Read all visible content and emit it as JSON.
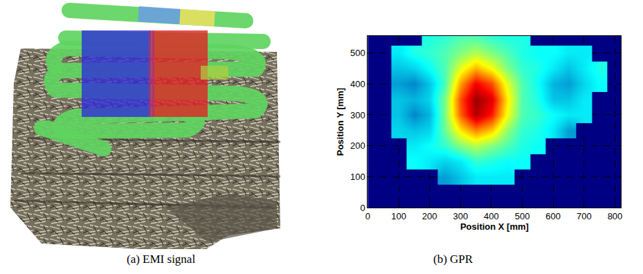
{
  "chart_data": [
    {
      "type": "image",
      "caption": "(a) EMI signal"
    },
    {
      "type": "heatmap",
      "caption": "(b) GPR",
      "x_label": "Position X [mm]",
      "y_label": "Position Y [mm]",
      "x": [
        0,
        50,
        100,
        150,
        200,
        250,
        300,
        350,
        400,
        450,
        500,
        550,
        600,
        650,
        700,
        750,
        800
      ],
      "y": [
        100,
        150,
        200,
        250,
        300,
        350,
        400,
        450,
        500,
        550
      ],
      "z": [
        [
          null,
          null,
          null,
          null,
          null,
          0.25,
          0.3,
          0.35,
          0.35,
          0.35,
          null,
          null,
          null,
          null,
          null,
          null,
          null
        ],
        [
          null,
          null,
          null,
          0.38,
          0.35,
          0.32,
          0.35,
          0.42,
          0.4,
          0.38,
          0.38,
          null,
          null,
          null,
          null,
          null,
          null
        ],
        [
          null,
          null,
          null,
          0.35,
          0.38,
          0.42,
          0.5,
          0.55,
          0.5,
          0.45,
          0.4,
          0.38,
          null,
          null,
          null,
          null,
          null
        ],
        [
          null,
          null,
          0.32,
          0.3,
          0.32,
          0.48,
          0.65,
          0.75,
          0.68,
          0.52,
          0.42,
          0.4,
          0.35,
          0.25,
          null,
          null,
          null
        ],
        [
          null,
          null,
          0.3,
          0.22,
          0.28,
          0.5,
          0.78,
          0.95,
          0.85,
          0.62,
          0.45,
          0.42,
          0.38,
          0.35,
          0.35,
          null,
          null
        ],
        [
          null,
          null,
          0.3,
          0.28,
          0.32,
          0.5,
          0.8,
          0.97,
          0.9,
          0.65,
          0.45,
          0.4,
          0.3,
          0.3,
          0.35,
          null,
          null
        ],
        [
          null,
          null,
          0.25,
          0.22,
          0.3,
          0.45,
          0.72,
          0.88,
          0.8,
          0.6,
          0.45,
          0.38,
          0.28,
          0.25,
          0.32,
          0.38,
          null
        ],
        [
          null,
          null,
          0.3,
          0.32,
          0.38,
          0.45,
          0.6,
          0.7,
          0.62,
          0.5,
          0.42,
          0.4,
          0.35,
          0.3,
          0.35,
          0.4,
          null
        ],
        [
          null,
          null,
          0.35,
          0.4,
          0.42,
          0.45,
          0.5,
          0.55,
          0.5,
          0.45,
          0.4,
          0.38,
          0.38,
          0.35,
          0.35,
          null,
          null
        ],
        [
          null,
          null,
          null,
          null,
          0.4,
          0.42,
          0.45,
          0.45,
          0.42,
          0.4,
          0.4,
          null,
          null,
          null,
          null,
          null,
          null
        ]
      ],
      "zlim": [
        0,
        1
      ],
      "xlim": [
        0,
        820
      ],
      "ylim": [
        0,
        555
      ],
      "xticks": [
        0,
        100,
        200,
        300,
        400,
        500,
        600,
        700,
        800
      ],
      "yticks": [
        0,
        100,
        200,
        300,
        400,
        500
      ],
      "grid": true
    }
  ]
}
